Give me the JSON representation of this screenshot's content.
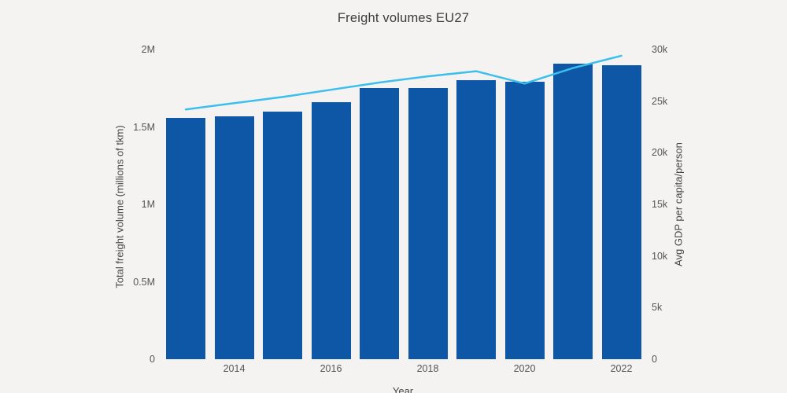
{
  "page": {
    "background_color": "#f4f3f1"
  },
  "chart_data": {
    "type": "bar",
    "title": "Freight volumes EU27",
    "categories": [
      2013,
      2014,
      2015,
      2016,
      2017,
      2018,
      2019,
      2020,
      2021,
      2022
    ],
    "xlabel": "Year",
    "x_tick_labels": [
      "2014",
      "2016",
      "2018",
      "2020",
      "2022"
    ],
    "x_tick_years": [
      2014,
      2016,
      2018,
      2020,
      2022
    ],
    "y_left": {
      "label": "Total freight volume (millions of tkm)",
      "tick_labels": [
        "0",
        "0.5M",
        "1M",
        "1.5M",
        "2M"
      ],
      "tick_values": [
        0,
        500000,
        1000000,
        1500000,
        2000000
      ],
      "range": [
        0,
        2000000
      ]
    },
    "y_right": {
      "label": "Avg GDP per capita/person",
      "tick_labels": [
        "0",
        "5k",
        "10k",
        "15k",
        "20k",
        "25k",
        "30k"
      ],
      "tick_values": [
        0,
        5000,
        10000,
        15000,
        20000,
        25000,
        30000
      ],
      "range": [
        0,
        30000
      ]
    },
    "series": [
      {
        "name": "Total freight volume",
        "type": "bar",
        "axis": "left",
        "color": "#0d57a6",
        "values": [
          1560000,
          1570000,
          1600000,
          1660000,
          1750000,
          1750000,
          1800000,
          1790000,
          1910000,
          1900000
        ]
      },
      {
        "name": "Avg GDP per capita",
        "type": "line",
        "axis": "right",
        "color": "#3cbfec",
        "values": [
          24200,
          24800,
          25400,
          26100,
          26800,
          27400,
          27900,
          26700,
          28200,
          29400
        ]
      }
    ],
    "legend": "none",
    "grid": false
  }
}
